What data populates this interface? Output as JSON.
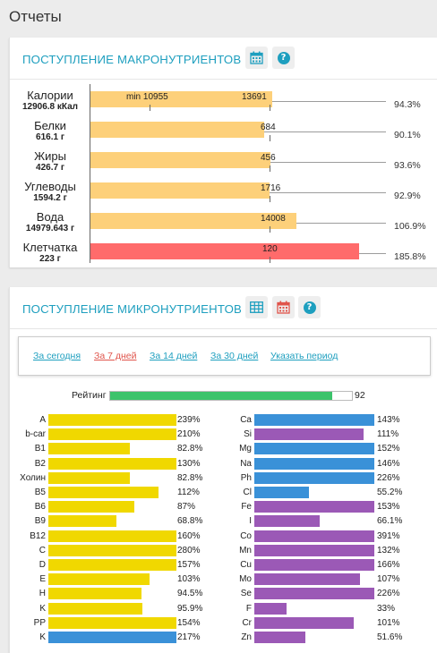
{
  "page": {
    "title": "Отчеты"
  },
  "macro": {
    "title": "ПОСТУПЛЕНИЕ МАКРОНУТРИЕНТОВ",
    "calendar_icon": "calendar-icon",
    "help_icon": "help-icon",
    "min_label": "min 10955",
    "rows": [
      {
        "name": "Калории",
        "amount": "12906.8 кКал",
        "target": "13691",
        "percent": "94.3%",
        "fill": 0.943,
        "color": "#fdd07a"
      },
      {
        "name": "Белки",
        "amount": "616.1 г",
        "target": "684",
        "percent": "90.1%",
        "fill": 0.901,
        "color": "#fdd07a"
      },
      {
        "name": "Жиры",
        "amount": "426.7 г",
        "target": "456",
        "percent": "93.6%",
        "fill": 0.936,
        "color": "#fdd07a"
      },
      {
        "name": "Углеводы",
        "amount": "1594.2 г",
        "target": "1716",
        "percent": "92.9%",
        "fill": 0.929,
        "color": "#fdd07a"
      },
      {
        "name": "Вода",
        "amount": "14979.643 г",
        "target": "14008",
        "percent": "106.9%",
        "fill": 1.069,
        "color": "#fdd07a"
      },
      {
        "name": "Клетчатка",
        "amount": "223 г",
        "target": "120",
        "percent": "185.8%",
        "fill": 1.858,
        "color": "#ff6b6b"
      }
    ]
  },
  "micro": {
    "title": "ПОСТУПЛЕНИЕ МИКРОНУТРИЕНТОВ",
    "table_icon": "table-icon",
    "calendar_icon": "calendar-icon",
    "help_icon": "help-icon",
    "periods": [
      {
        "label": "За сегодня",
        "active": false
      },
      {
        "label": "За 7 дней",
        "active": true
      },
      {
        "label": "За 14 дней",
        "active": false
      },
      {
        "label": "За 30 дней",
        "active": false
      },
      {
        "label": "Указать период",
        "active": false
      }
    ],
    "rating": {
      "label": "Рейтинг",
      "value": "92",
      "fill": 0.92
    },
    "colors": {
      "yellow": "#f0d800",
      "blue": "#3a91d8",
      "purple": "#9b59b6"
    },
    "left": [
      {
        "name": "A",
        "percent": "239%",
        "fill": 2.39,
        "color": "#f0d800"
      },
      {
        "name": "b-car",
        "percent": "210%",
        "fill": 2.1,
        "color": "#f0d800"
      },
      {
        "name": "B1",
        "percent": "82.8%",
        "fill": 0.828,
        "color": "#f0d800"
      },
      {
        "name": "B2",
        "percent": "130%",
        "fill": 1.3,
        "color": "#f0d800"
      },
      {
        "name": "Холин",
        "percent": "82.8%",
        "fill": 0.828,
        "color": "#f0d800"
      },
      {
        "name": "B5",
        "percent": "112%",
        "fill": 1.12,
        "color": "#f0d800"
      },
      {
        "name": "B6",
        "percent": "87%",
        "fill": 0.87,
        "color": "#f0d800"
      },
      {
        "name": "B9",
        "percent": "68.8%",
        "fill": 0.688,
        "color": "#f0d800"
      },
      {
        "name": "B12",
        "percent": "160%",
        "fill": 1.6,
        "color": "#f0d800"
      },
      {
        "name": "C",
        "percent": "280%",
        "fill": 2.8,
        "color": "#f0d800"
      },
      {
        "name": "D",
        "percent": "157%",
        "fill": 1.57,
        "color": "#f0d800"
      },
      {
        "name": "E",
        "percent": "103%",
        "fill": 1.03,
        "color": "#f0d800"
      },
      {
        "name": "H",
        "percent": "94.5%",
        "fill": 0.945,
        "color": "#f0d800"
      },
      {
        "name": "K",
        "percent": "95.9%",
        "fill": 0.959,
        "color": "#f0d800"
      },
      {
        "name": "PP",
        "percent": "154%",
        "fill": 1.54,
        "color": "#f0d800"
      },
      {
        "name": "K",
        "percent": "217%",
        "fill": 2.17,
        "color": "#3a91d8"
      }
    ],
    "right": [
      {
        "name": "Ca",
        "percent": "143%",
        "fill": 1.43,
        "color": "#3a91d8"
      },
      {
        "name": "Si",
        "percent": "111%",
        "fill": 1.11,
        "color": "#9b59b6"
      },
      {
        "name": "Mg",
        "percent": "152%",
        "fill": 1.52,
        "color": "#3a91d8"
      },
      {
        "name": "Na",
        "percent": "146%",
        "fill": 1.46,
        "color": "#3a91d8"
      },
      {
        "name": "Ph",
        "percent": "226%",
        "fill": 2.26,
        "color": "#3a91d8"
      },
      {
        "name": "Cl",
        "percent": "55.2%",
        "fill": 0.552,
        "color": "#3a91d8"
      },
      {
        "name": "Fe",
        "percent": "153%",
        "fill": 1.53,
        "color": "#9b59b6"
      },
      {
        "name": "I",
        "percent": "66.1%",
        "fill": 0.661,
        "color": "#9b59b6"
      },
      {
        "name": "Co",
        "percent": "391%",
        "fill": 3.91,
        "color": "#9b59b6"
      },
      {
        "name": "Mn",
        "percent": "132%",
        "fill": 1.32,
        "color": "#9b59b6"
      },
      {
        "name": "Cu",
        "percent": "166%",
        "fill": 1.66,
        "color": "#9b59b6"
      },
      {
        "name": "Mo",
        "percent": "107%",
        "fill": 1.07,
        "color": "#9b59b6"
      },
      {
        "name": "Se",
        "percent": "226%",
        "fill": 2.26,
        "color": "#9b59b6"
      },
      {
        "name": "F",
        "percent": "33%",
        "fill": 0.33,
        "color": "#9b59b6"
      },
      {
        "name": "Cr",
        "percent": "101%",
        "fill": 1.01,
        "color": "#9b59b6"
      },
      {
        "name": "Zn",
        "percent": "51.6%",
        "fill": 0.516,
        "color": "#9b59b6"
      }
    ]
  }
}
